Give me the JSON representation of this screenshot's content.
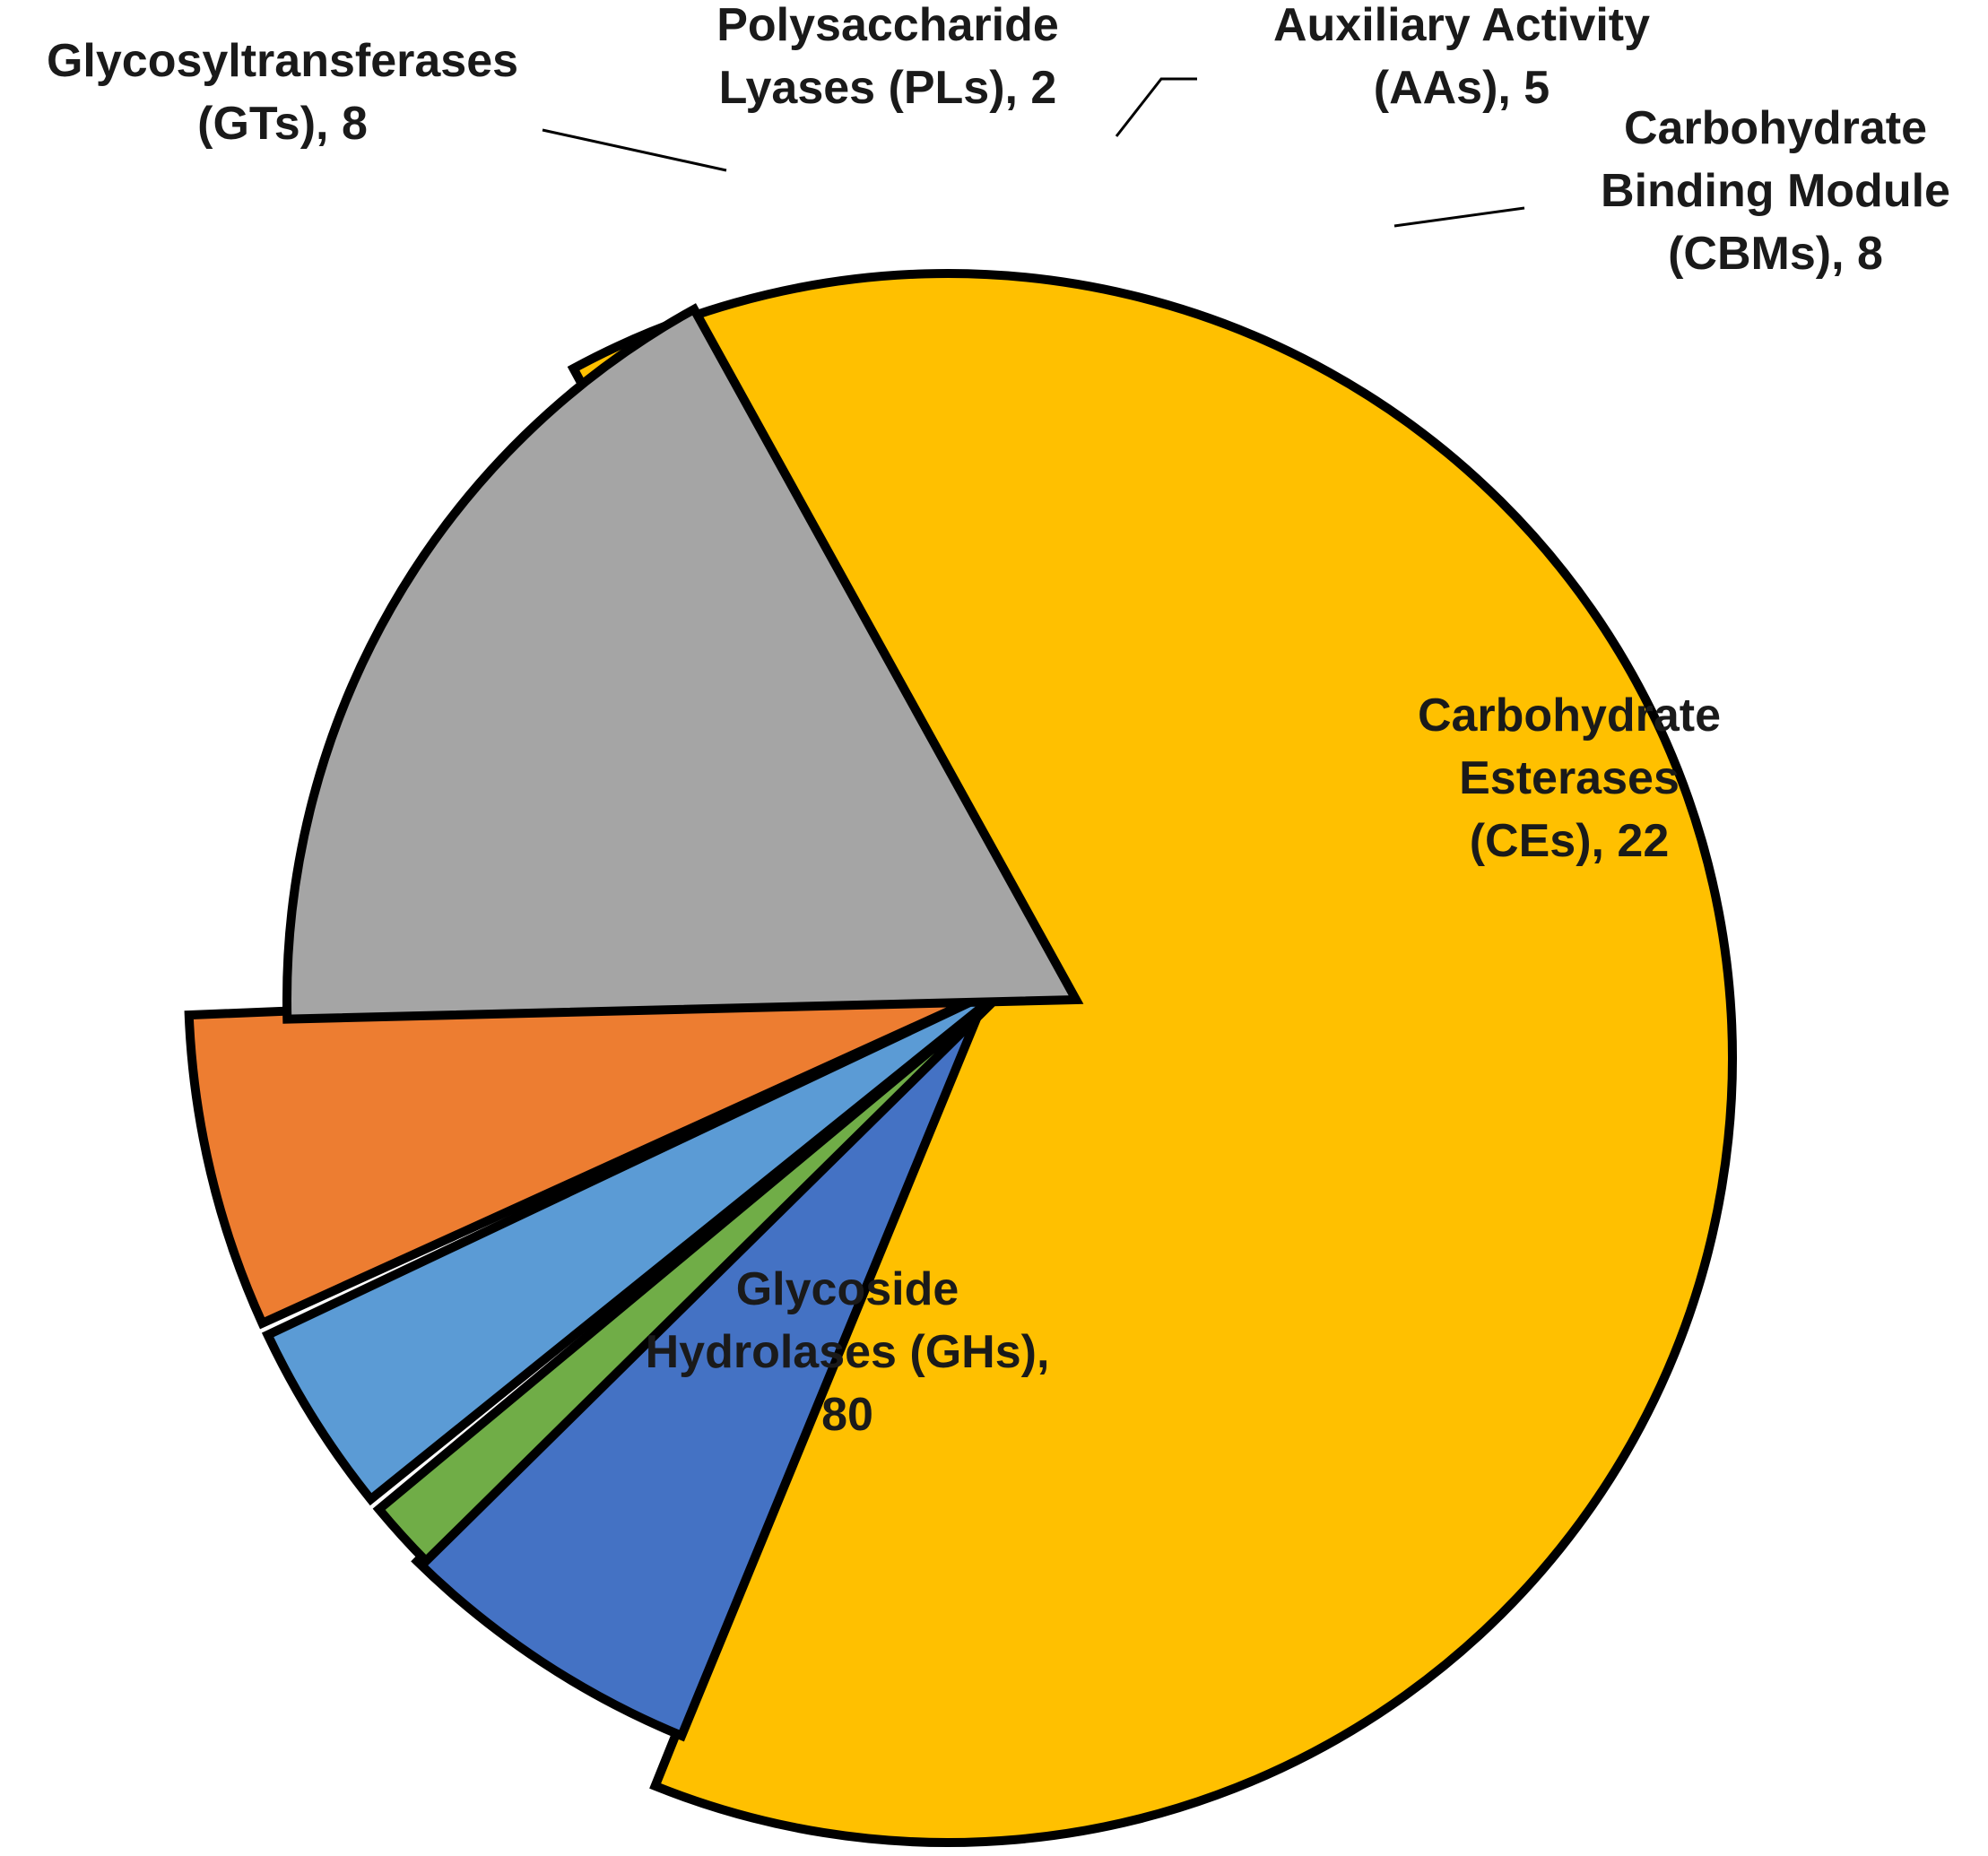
{
  "chart_data": {
    "type": "pie",
    "title": "",
    "start_angle_deg": -28.5,
    "direction": "clockwise",
    "slices": [
      {
        "name": "Glycoside Hydrolases (GHs)",
        "value": 80,
        "color": "#FFC000",
        "label_lines": [
          "Glycoside",
          "Hydrolases (GHs),",
          "80"
        ],
        "exploded": false
      },
      {
        "name": "Glycosyltransferases (GTs)",
        "value": 8,
        "color": "#4472C4",
        "label_lines": [
          "Glycosyltransferases",
          "(GTs), 8"
        ],
        "exploded": true
      },
      {
        "name": "Polysaccharide Lyases (PLs)",
        "value": 2,
        "color": "#70AD47",
        "label_lines": [
          "Polysaccharide",
          "Lyases (PLs), 2"
        ],
        "exploded": true
      },
      {
        "name": "Auxiliary Activity (AAs)",
        "value": 5,
        "color": "#5B9BD5",
        "label_lines": [
          "Auxiliary Activity",
          "(AAs), 5"
        ],
        "exploded": true
      },
      {
        "name": "Carbohydrate Binding Module (CBMs)",
        "value": 8,
        "color": "#ED7D31",
        "label_lines": [
          "Carbohydrate",
          "Binding Module",
          "(CBMs), 8"
        ],
        "exploded": true
      },
      {
        "name": "Carbohydrate Esterases (CEs)",
        "value": 22,
        "color": "#A5A5A5",
        "label_lines": [
          "Carbohydrate",
          "Esterases",
          "(CEs), 22"
        ],
        "exploded": true
      }
    ],
    "legend": "none",
    "labels": "category name and value"
  }
}
